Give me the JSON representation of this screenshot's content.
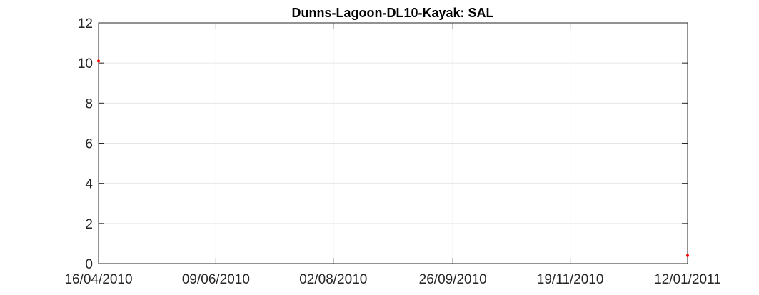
{
  "chart_data": {
    "type": "scatter",
    "title": "Dunns-Lagoon-DL10-Kayak: SAL",
    "xlabel": "",
    "ylabel": "",
    "x_ticks": [
      "16/04/2010",
      "09/06/2010",
      "02/08/2010",
      "26/09/2010",
      "19/11/2010",
      "12/01/2011"
    ],
    "xlim": [
      "16/04/2010",
      "12/01/2011"
    ],
    "ylim": [
      0,
      12
    ],
    "y_ticks": [
      "0",
      "2",
      "4",
      "6",
      "8",
      "10",
      "12"
    ],
    "grid": true,
    "series": [
      {
        "points": [
          {
            "x": "16/04/2010",
            "y": 10.1
          },
          {
            "x": "12/01/2011",
            "y": 0.4
          }
        ]
      }
    ],
    "colors": {
      "marker": "#ff0000",
      "axes": "#262626",
      "grid": "#e6e6e6"
    }
  }
}
